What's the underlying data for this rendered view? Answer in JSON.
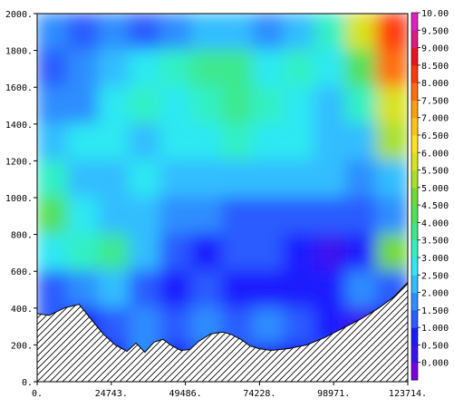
{
  "chart_data": {
    "type": "heatmap",
    "title": "",
    "xlabel": "",
    "ylabel": "",
    "xlim": [
      0,
      123714
    ],
    "ylim": [
      0,
      2000
    ],
    "x_ticks": [
      "0.",
      "24743.",
      "49486.",
      "74228.",
      "98971.",
      "123714."
    ],
    "x_tick_values": [
      0,
      24743,
      49486,
      74228,
      98971,
      123714
    ],
    "y_ticks": [
      "0.",
      "200.",
      "400.",
      "600.",
      "800.",
      "1000.",
      "1200.",
      "1400.",
      "1600.",
      "1800.",
      "2000."
    ],
    "y_tick_values": [
      0,
      200,
      400,
      600,
      800,
      1000,
      1200,
      1400,
      1600,
      1800,
      2000
    ],
    "colorbar": {
      "labels": [
        "0.000",
        "0.500",
        "1.000",
        "1.500",
        "2.000",
        "2.500",
        "3.000",
        "3.500",
        "4.000",
        "4.500",
        "5.000",
        "5.500",
        "6.000",
        "6.500",
        "7.000",
        "7.500",
        "8.000",
        "8.500",
        "9.000",
        "9.500",
        "10.00"
      ],
      "colors": [
        "#7a00e6",
        "#3a14f0",
        "#1a1aff",
        "#2a5cff",
        "#2f8dff",
        "#32bdff",
        "#2fe8f2",
        "#33f0c4",
        "#3de88f",
        "#52e05a",
        "#73d93a",
        "#a8e02e",
        "#d9e21f",
        "#ffe01a",
        "#ffc414",
        "#ff9f10",
        "#ff6e0c",
        "#ff380a",
        "#ee1220",
        "#e01880",
        "#e020c0"
      ]
    },
    "terrain_profile": {
      "x": [
        0,
        4000,
        9000,
        14000,
        18000,
        22000,
        26000,
        30000,
        33000,
        36000,
        39000,
        42000,
        45000,
        48000,
        51000,
        54000,
        58000,
        62000,
        65000,
        68000,
        71000,
        74000,
        78000,
        84000,
        90000,
        96000,
        102000,
        108000,
        114000,
        119000,
        123714
      ],
      "y": [
        370,
        360,
        400,
        420,
        340,
        260,
        200,
        165,
        210,
        160,
        215,
        230,
        195,
        170,
        175,
        220,
        260,
        270,
        255,
        230,
        195,
        180,
        170,
        180,
        200,
        240,
        290,
        340,
        400,
        460,
        540
      ]
    },
    "field": {
      "columns": 12,
      "rows": 10,
      "values": [
        [
          2.0,
          1.5,
          2.0,
          1.5,
          2.0,
          2.5,
          2.5,
          2.0,
          2.5,
          3.5,
          6.0,
          8.5
        ],
        [
          1.5,
          2.0,
          2.5,
          3.0,
          3.5,
          4.0,
          4.0,
          3.0,
          3.5,
          3.0,
          4.5,
          8.0
        ],
        [
          2.0,
          2.0,
          3.0,
          3.5,
          3.0,
          3.5,
          4.0,
          3.5,
          3.0,
          2.5,
          3.5,
          6.0
        ],
        [
          2.5,
          3.0,
          3.0,
          2.5,
          3.0,
          3.0,
          3.5,
          3.0,
          3.0,
          2.5,
          2.5,
          5.5
        ],
        [
          3.5,
          2.5,
          2.5,
          3.0,
          2.5,
          2.5,
          2.5,
          2.5,
          2.5,
          2.5,
          2.0,
          2.5
        ],
        [
          4.5,
          3.0,
          2.5,
          2.5,
          2.0,
          2.0,
          1.5,
          1.5,
          1.5,
          1.5,
          1.5,
          2.0
        ],
        [
          3.0,
          3.5,
          4.0,
          2.5,
          1.5,
          1.0,
          1.5,
          1.5,
          1.0,
          0.5,
          1.0,
          5.0
        ],
        [
          1.5,
          2.0,
          2.5,
          1.5,
          1.0,
          1.5,
          1.0,
          1.0,
          1.0,
          1.0,
          2.0,
          1.5
        ],
        [
          1.5,
          1.0,
          1.5,
          2.0,
          1.5,
          2.0,
          1.5,
          2.0,
          1.5,
          1.0,
          0.5,
          1.0
        ],
        [
          1.0,
          1.5,
          1.0,
          2.0,
          1.0,
          1.5,
          1.5,
          1.0,
          1.0,
          1.5,
          1.0,
          1.5
        ]
      ]
    }
  }
}
